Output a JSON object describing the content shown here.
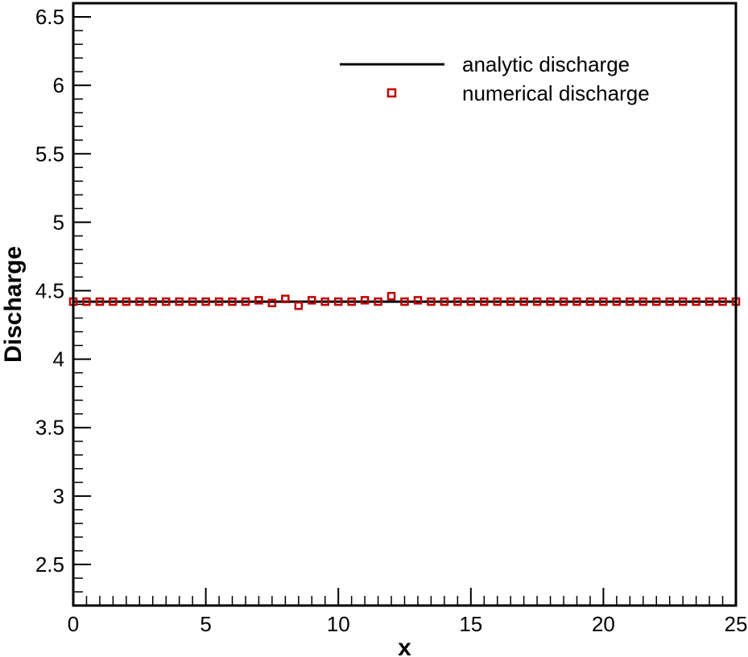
{
  "chart_data": {
    "type": "line",
    "title": "",
    "xlabel": "x",
    "ylabel": "Discharge",
    "xlim": [
      0,
      25
    ],
    "ylim": [
      2.2,
      6.6
    ],
    "grid": false,
    "legend_position": "top-right",
    "x_major_ticks": [
      0,
      5,
      10,
      15,
      20,
      25
    ],
    "x_major_tick_labels": [
      "0",
      "5",
      "10",
      "15",
      "20",
      "25"
    ],
    "x_minor_step": 0.5,
    "y_major_ticks": [
      2.5,
      3,
      3.5,
      4,
      4.5,
      5,
      5.5,
      6,
      6.5
    ],
    "y_major_tick_labels": [
      "2.5",
      "3",
      "3.5",
      "4",
      "4.5",
      "5",
      "5.5",
      "6",
      "6.5"
    ],
    "y_minor_step": 0.1,
    "series": [
      {
        "name": "analytic discharge",
        "style": "line",
        "color": "#000000",
        "x": [
          0,
          25
        ],
        "y": [
          4.42,
          4.42
        ]
      },
      {
        "name": "numerical discharge",
        "style": "markers",
        "marker": "hollow-square",
        "color": "#c00000",
        "x": [
          0,
          0.5,
          1,
          1.5,
          2,
          2.5,
          3,
          3.5,
          4,
          4.5,
          5,
          5.5,
          6,
          6.5,
          7,
          7.5,
          8,
          8.5,
          9,
          9.5,
          10,
          10.5,
          11,
          11.5,
          12,
          12.5,
          13,
          13.5,
          14,
          14.5,
          15,
          15.5,
          16,
          16.5,
          17,
          17.5,
          18,
          18.5,
          19,
          19.5,
          20,
          20.5,
          21,
          21.5,
          22,
          22.5,
          23,
          23.5,
          24,
          24.5,
          25
        ],
        "y": [
          4.42,
          4.42,
          4.42,
          4.42,
          4.42,
          4.42,
          4.42,
          4.42,
          4.42,
          4.42,
          4.42,
          4.42,
          4.42,
          4.42,
          4.43,
          4.41,
          4.44,
          4.39,
          4.43,
          4.42,
          4.42,
          4.42,
          4.43,
          4.42,
          4.46,
          4.42,
          4.43,
          4.42,
          4.42,
          4.42,
          4.42,
          4.42,
          4.42,
          4.42,
          4.42,
          4.42,
          4.42,
          4.42,
          4.42,
          4.42,
          4.42,
          4.42,
          4.42,
          4.42,
          4.42,
          4.42,
          4.42,
          4.42,
          4.42,
          4.42,
          4.42
        ]
      }
    ]
  }
}
